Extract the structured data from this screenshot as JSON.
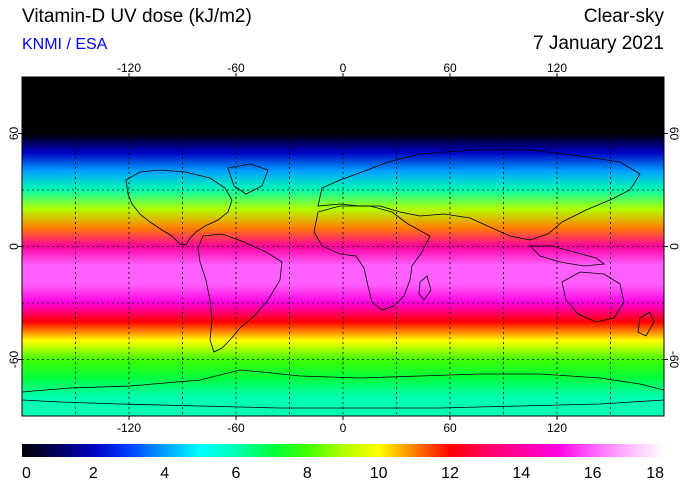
{
  "header": {
    "title": "Vitamin-D UV dose (kJ/m2)",
    "credit": "KNMI / ESA",
    "sky_mode": "Clear-sky",
    "date": "7 January 2021"
  },
  "colors": {
    "credit_text": "#0000ff",
    "scale": [
      "#000000",
      "#000060",
      "#0000c0",
      "#0040ff",
      "#00a0ff",
      "#00ffff",
      "#00ffb0",
      "#00ff40",
      "#40ff00",
      "#b0ff00",
      "#ffff00",
      "#ff8000",
      "#ff0000",
      "#ff0060",
      "#ff00a0",
      "#ff00e0",
      "#ff60ff",
      "#ffb8ff",
      "#ffffff"
    ]
  },
  "axes": {
    "longitude_ticks": [
      "-120",
      "-60",
      "0",
      "60",
      "120"
    ],
    "longitude_values": [
      -120,
      -60,
      0,
      60,
      120
    ],
    "latitude_ticks": [
      "60",
      "0",
      "-60"
    ],
    "latitude_values": [
      60,
      0,
      -60
    ]
  },
  "colorbar": {
    "labels": [
      "0",
      "2",
      "4",
      "6",
      "8",
      "10",
      "12",
      "14",
      "16",
      "18"
    ],
    "min": 0,
    "max": 18
  },
  "map_data": {
    "lon_range": [
      -180,
      180
    ],
    "lat_range": [
      -90,
      90
    ],
    "grid_step_deg": 30,
    "uv_by_latitude": [
      {
        "lat": 90,
        "dose": 0
      },
      {
        "lat": 70,
        "dose": 0
      },
      {
        "lat": 60,
        "dose": 0.3
      },
      {
        "lat": 50,
        "dose": 1.5
      },
      {
        "lat": 40,
        "dose": 3.5
      },
      {
        "lat": 30,
        "dose": 6
      },
      {
        "lat": 20,
        "dose": 8.5
      },
      {
        "lat": 10,
        "dose": 11
      },
      {
        "lat": 0,
        "dose": 13.5
      },
      {
        "lat": -10,
        "dose": 15.5
      },
      {
        "lat": -20,
        "dose": 16
      },
      {
        "lat": -30,
        "dose": 14.5
      },
      {
        "lat": -40,
        "dose": 12
      },
      {
        "lat": -50,
        "dose": 9.5
      },
      {
        "lat": -60,
        "dose": 7.5
      },
      {
        "lat": -70,
        "dose": 6.5
      },
      {
        "lat": -80,
        "dose": 6.3
      },
      {
        "lat": -90,
        "dose": 6.2
      }
    ]
  }
}
